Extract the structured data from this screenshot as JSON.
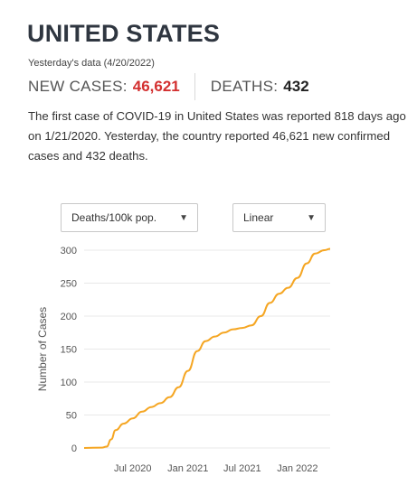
{
  "header": {
    "title": "UNITED STATES",
    "subtitle": "Yesterday's data (4/20/2022)",
    "new_cases_label": "NEW CASES:",
    "new_cases_value": "46,621",
    "deaths_label": "DEATHS:",
    "deaths_value": "432"
  },
  "summary": "The first case of COVID-19 in United States was reported 818 days ago on 1/21/2020. Yesterday, the country reported 46,621 new confirmed cases and 432 deaths.",
  "controls": {
    "metric_select": {
      "value": "Deaths/100k pop.",
      "icon": "dropdown-arrow-icon"
    },
    "scale_select": {
      "value": "Linear",
      "icon": "dropdown-arrow-icon"
    }
  },
  "colors": {
    "line": "#f5a623",
    "accent_red": "#d32f2f",
    "grid": "#e8e8e8"
  },
  "chart_data": {
    "type": "line",
    "title": "",
    "xlabel": "",
    "ylabel": "Number of Cases",
    "ylim": [
      0,
      300
    ],
    "xlim": [
      "2020-01-21",
      "2022-04-20"
    ],
    "y_ticks": [
      0,
      50,
      100,
      150,
      200,
      250,
      300
    ],
    "x_ticks": [
      {
        "date": "2020-07-01",
        "label": "Jul 2020"
      },
      {
        "date": "2021-01-01",
        "label": "Jan 2021"
      },
      {
        "date": "2021-07-01",
        "label": "Jul 2021"
      },
      {
        "date": "2022-01-01",
        "label": "Jan 2022"
      }
    ],
    "grid": "horizontal",
    "series": [
      {
        "points": [
          [
            "2020-01-21",
            0
          ],
          [
            "2020-03-20",
            0.5
          ],
          [
            "2020-04-05",
            2
          ],
          [
            "2020-04-20",
            13
          ],
          [
            "2020-05-05",
            27
          ],
          [
            "2020-06-01",
            37
          ],
          [
            "2020-07-01",
            45
          ],
          [
            "2020-08-01",
            55
          ],
          [
            "2020-09-01",
            62
          ],
          [
            "2020-10-01",
            68
          ],
          [
            "2020-11-01",
            77
          ],
          [
            "2020-12-01",
            92
          ],
          [
            "2021-01-01",
            117
          ],
          [
            "2021-02-01",
            147
          ],
          [
            "2021-03-01",
            162
          ],
          [
            "2021-04-01",
            169
          ],
          [
            "2021-05-01",
            175
          ],
          [
            "2021-06-01",
            180
          ],
          [
            "2021-07-01",
            182
          ],
          [
            "2021-08-01",
            186
          ],
          [
            "2021-09-01",
            200
          ],
          [
            "2021-10-01",
            220
          ],
          [
            "2021-11-01",
            234
          ],
          [
            "2021-12-01",
            243
          ],
          [
            "2022-01-01",
            258
          ],
          [
            "2022-02-01",
            280
          ],
          [
            "2022-03-01",
            295
          ],
          [
            "2022-04-01",
            300
          ],
          [
            "2022-04-20",
            302
          ]
        ]
      }
    ]
  }
}
